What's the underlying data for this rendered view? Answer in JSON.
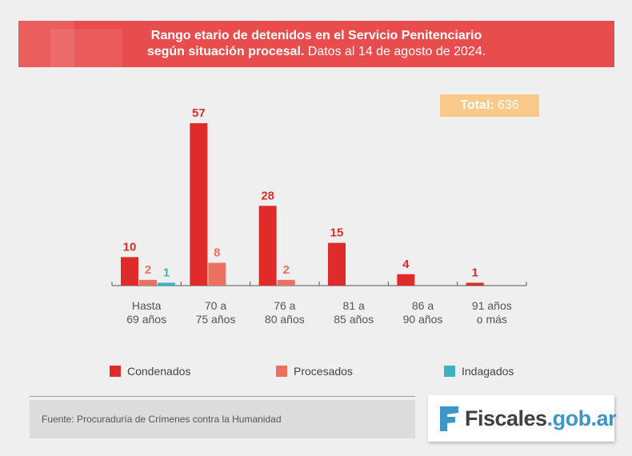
{
  "title": {
    "line1": "Rango etario de detenidos en el Servicio Penitenciario",
    "line2_bold": "según situación procesal.",
    "line2_rest": " Datos al 14 de agosto de 2024."
  },
  "total": {
    "label": "Total:",
    "value": "636"
  },
  "source": "Fuente: Procuraduría de Crímenes contra la Humanidad",
  "logo": {
    "brand": "Fiscales",
    "domain": ".gob.ar"
  },
  "colors": {
    "header": "#e84c4c",
    "condenados": "#e02b2b",
    "procesados": "#ec705e",
    "indagados": "#3bb3c0",
    "total_bg": "#f9c98a",
    "axis": "#555555"
  },
  "chart_data": {
    "type": "bar",
    "categories": [
      [
        "Hasta",
        "69 años"
      ],
      [
        "70 a",
        "75 años"
      ],
      [
        "76 a",
        "80 años"
      ],
      [
        "81 a",
        "85 años"
      ],
      [
        "86 a",
        "90 años"
      ],
      [
        "91 años",
        "o más"
      ]
    ],
    "series": [
      {
        "name": "Condenados",
        "color": "#e02b2b",
        "values": [
          10,
          57,
          28,
          15,
          4,
          1
        ]
      },
      {
        "name": "Procesados",
        "color": "#ec705e",
        "values": [
          2,
          8,
          2,
          null,
          null,
          null
        ]
      },
      {
        "name": "Indagados",
        "color": "#3bb3c0",
        "values": [
          1,
          null,
          null,
          null,
          null,
          null
        ]
      }
    ],
    "ylim": [
      0,
      60
    ],
    "title": "Rango etario de detenidos en el Servicio Penitenciario según situación procesal. Datos al 14 de agosto de 2024.",
    "xlabel": "",
    "ylabel": "",
    "legend": [
      "Condenados",
      "Procesados",
      "Indagados"
    ]
  }
}
